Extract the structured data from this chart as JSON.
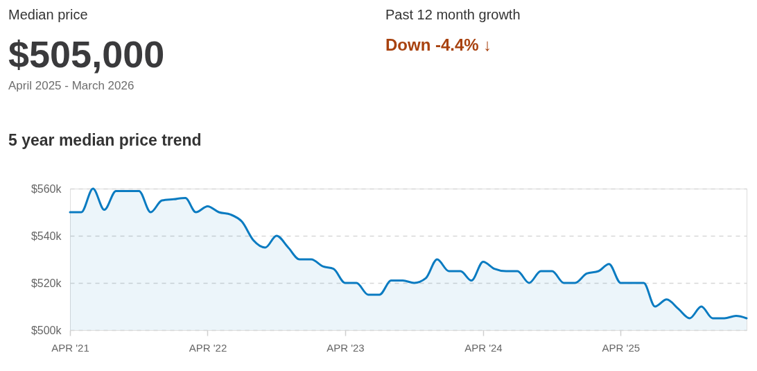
{
  "chart_data": {
    "type": "area",
    "title": "5 year median price trend",
    "annotations": [
      "Median price",
      "$505,000",
      "April 2025 - March 2026",
      "Past 12 month growth",
      "Down -4.4% ↓"
    ],
    "x": [
      "2021-04",
      "2021-05",
      "2021-06",
      "2021-07",
      "2021-08",
      "2021-09",
      "2021-10",
      "2021-11",
      "2021-12",
      "2022-01",
      "2022-02",
      "2022-03",
      "2022-04",
      "2022-05",
      "2022-06",
      "2022-07",
      "2022-08",
      "2022-09",
      "2022-10",
      "2022-11",
      "2022-12",
      "2023-01",
      "2023-02",
      "2023-03",
      "2023-04",
      "2023-05",
      "2023-06",
      "2023-07",
      "2023-08",
      "2023-09",
      "2023-10",
      "2023-11",
      "2023-12",
      "2024-01",
      "2024-02",
      "2024-03",
      "2024-04",
      "2024-05",
      "2024-06",
      "2024-07",
      "2024-08",
      "2024-09",
      "2024-10",
      "2024-11",
      "2024-12",
      "2025-01",
      "2025-02",
      "2025-03",
      "2025-04",
      "2025-05",
      "2025-06",
      "2025-07",
      "2025-08",
      "2025-09",
      "2025-10",
      "2025-11",
      "2025-12",
      "2026-01",
      "2026-02",
      "2026-03"
    ],
    "values": [
      550000,
      550000,
      560000,
      551000,
      559000,
      559000,
      559000,
      550000,
      555000,
      555500,
      556000,
      550000,
      552500,
      550000,
      549000,
      546000,
      538000,
      535000,
      540000,
      535000,
      530000,
      530000,
      527000,
      526000,
      520000,
      520000,
      515000,
      515000,
      521000,
      521000,
      520000,
      522000,
      530000,
      525000,
      525000,
      521000,
      529000,
      526000,
      525000,
      525000,
      520000,
      525000,
      525000,
      520000,
      520000,
      524000,
      525000,
      528000,
      520000,
      520000,
      520000,
      510000,
      513000,
      509000,
      505000,
      510000,
      505000,
      505000,
      506000,
      505000
    ],
    "color": "#0a7bc1",
    "xlim": [
      "2021-04",
      "2026-03"
    ],
    "xticks": [
      {
        "value": "2021-04",
        "label": "APR '21"
      },
      {
        "value": "2022-04",
        "label": "APR '22"
      },
      {
        "value": "2023-04",
        "label": "APR '23"
      },
      {
        "value": "2024-04",
        "label": "APR '24"
      },
      {
        "value": "2025-04",
        "label": "APR '25"
      }
    ],
    "ylim": [
      500000,
      560000
    ],
    "yticks": [
      {
        "value": 500000,
        "label": "$500k"
      },
      {
        "value": 520000,
        "label": "$520k"
      },
      {
        "value": 540000,
        "label": "$540k"
      },
      {
        "value": 560000,
        "label": "$560k"
      }
    ],
    "grid": "y"
  }
}
